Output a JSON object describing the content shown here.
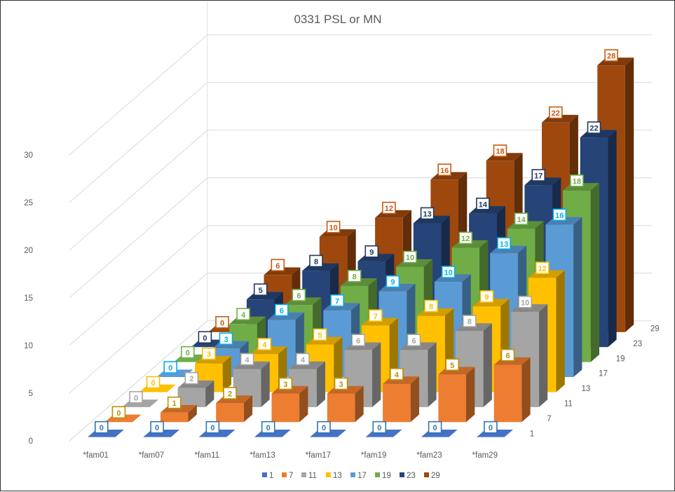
{
  "chart_data": {
    "type": "bar",
    "subtype": "3d-column",
    "title": "0331 PSL or MN",
    "categories": [
      "*fam01",
      "*fam07",
      "*fam11",
      "*fam13",
      "*fam17",
      "*fam19",
      "*fam23",
      "*fam29"
    ],
    "y_ticks": [
      "0",
      "5",
      "10",
      "15",
      "20",
      "25",
      "30"
    ],
    "ylim": [
      0,
      30
    ],
    "grid": true,
    "legend_position": "bottom",
    "series": [
      {
        "name": "1",
        "color": "#4472C4",
        "label_color": "#2E75B6",
        "values": [
          0,
          0,
          0,
          0,
          0,
          0,
          0,
          0
        ]
      },
      {
        "name": "7",
        "color": "#ED7D31",
        "label_color": "#BF9000",
        "values": [
          0,
          1,
          2,
          3,
          3,
          4,
          5,
          6
        ]
      },
      {
        "name": "11",
        "color": "#A5A5A5",
        "label_color": "#A5A5A5",
        "values": [
          0,
          2,
          4,
          4,
          6,
          6,
          8,
          10
        ]
      },
      {
        "name": "13",
        "color": "#FFC000",
        "label_color": "#FFC000",
        "values": [
          0,
          3,
          4,
          5,
          7,
          8,
          9,
          12
        ]
      },
      {
        "name": "17",
        "color": "#5B9BD5",
        "label_color": "#00B0F0",
        "values": [
          0,
          3,
          6,
          7,
          9,
          10,
          13,
          16
        ]
      },
      {
        "name": "19",
        "color": "#70AD47",
        "label_color": "#70AD47",
        "values": [
          0,
          4,
          6,
          8,
          10,
          12,
          14,
          18
        ]
      },
      {
        "name": "23",
        "color": "#264478",
        "label_color": "#1F3864",
        "values": [
          0,
          5,
          8,
          9,
          13,
          14,
          17,
          22
        ]
      },
      {
        "name": "29",
        "color": "#9E480E",
        "label_color": "#C55A11",
        "values": [
          0,
          6,
          10,
          12,
          16,
          18,
          22,
          28
        ]
      }
    ]
  }
}
